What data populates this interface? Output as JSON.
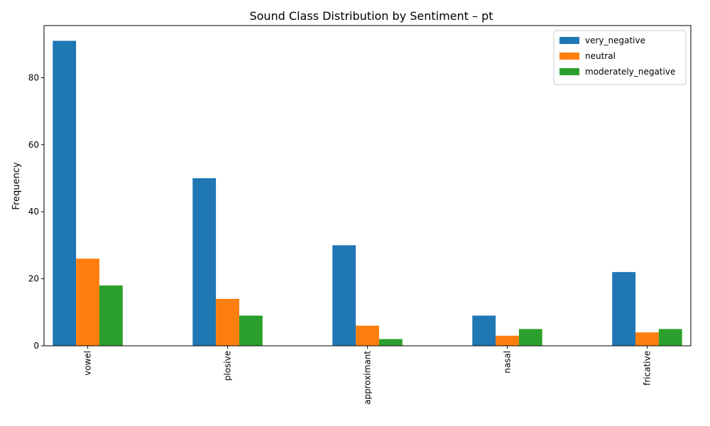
{
  "chart_data": {
    "type": "bar",
    "title": "Sound Class Distribution by Sentiment – pt",
    "xlabel": "",
    "ylabel": "Frequency",
    "categories": [
      "vowel",
      "plosive",
      "approximant",
      "nasal",
      "fricative"
    ],
    "series": [
      {
        "name": "very_negative",
        "color": "#1f77b4",
        "values": [
          91,
          50,
          30,
          9,
          22
        ]
      },
      {
        "name": "neutral",
        "color": "#ff7f0e",
        "values": [
          26,
          14,
          6,
          3,
          4
        ]
      },
      {
        "name": "moderately_negative",
        "color": "#2ca02c",
        "values": [
          18,
          9,
          2,
          5,
          5
        ]
      }
    ],
    "ylim": [
      0,
      95.55
    ],
    "yticks": [
      0,
      20,
      40,
      60,
      80
    ],
    "grid": false,
    "legend": "top-right",
    "x_tick_rotation": "vertical"
  }
}
